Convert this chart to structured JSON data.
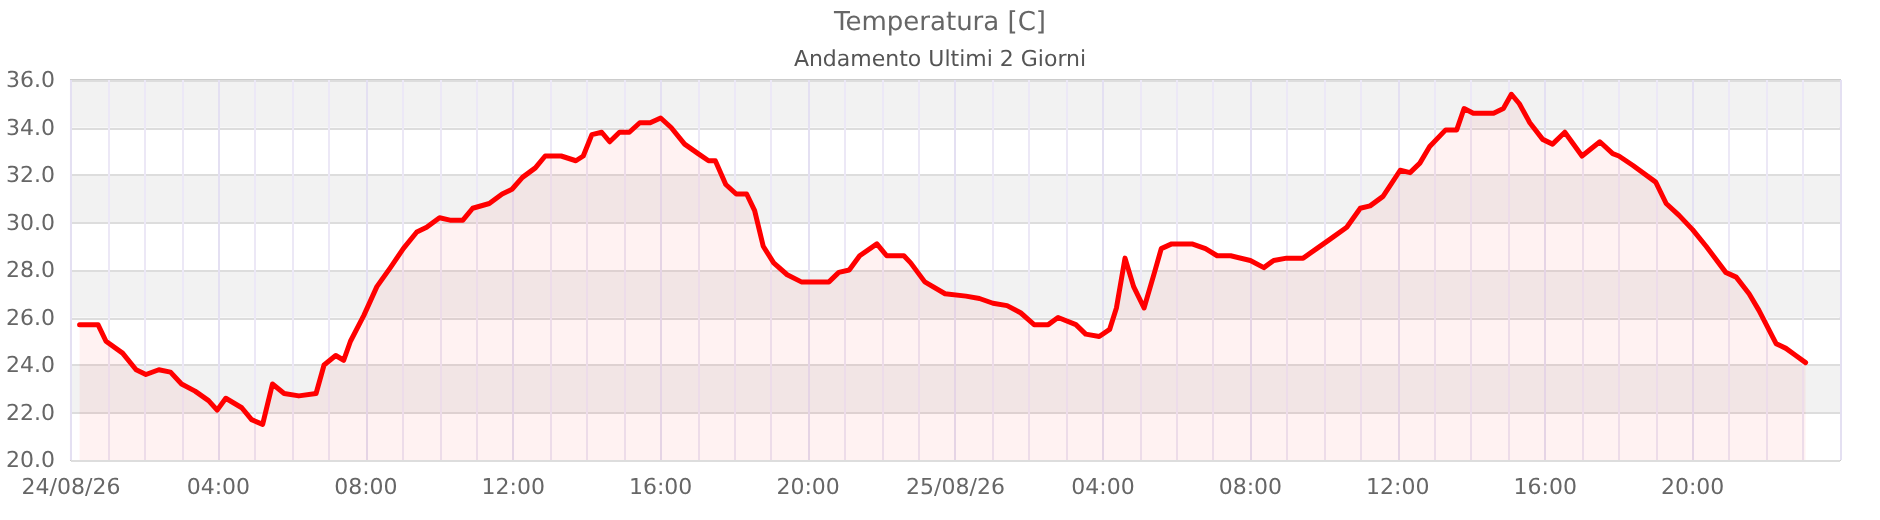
{
  "chart_data": {
    "type": "area",
    "title": "Temperatura [C]",
    "subtitle": "Andamento Ultimi 2 Giorni",
    "xlim": [
      "--08-24T00:00",
      "--08-26T00:00"
    ],
    "xticks": [
      {
        "value": "--08-24T00:00",
        "label": "24/08/26"
      },
      {
        "value": "--08-24T04:00",
        "label": "04:00"
      },
      {
        "value": "--08-24T08:00",
        "label": "08:00"
      },
      {
        "value": "--08-24T12:00",
        "label": "12:00"
      },
      {
        "value": "--08-24T16:00",
        "label": "16:00"
      },
      {
        "value": "--08-24T20:00",
        "label": "20:00"
      },
      {
        "value": "--08-25T00:00",
        "label": "25/08/26"
      },
      {
        "value": "--08-25T04:00",
        "label": "04:00"
      },
      {
        "value": "--08-25T08:00",
        "label": "08:00"
      },
      {
        "value": "--08-25T12:00",
        "label": "12:00"
      },
      {
        "value": "--08-25T16:00",
        "label": "16:00"
      },
      {
        "value": "--08-25T20:00",
        "label": "20:00"
      }
    ],
    "ylim": [
      20,
      36
    ],
    "yticks": [
      {
        "value": 20,
        "label": "20.0"
      },
      {
        "value": 22,
        "label": "22.0"
      },
      {
        "value": 24,
        "label": "24.0"
      },
      {
        "value": 26,
        "label": "26.0"
      },
      {
        "value": 28,
        "label": "28.0"
      },
      {
        "value": 30,
        "label": "30.0"
      },
      {
        "value": 32,
        "label": "32.0"
      },
      {
        "value": 34,
        "label": "34.0"
      },
      {
        "value": 36,
        "label": "36.0"
      }
    ],
    "grid": true,
    "marker": "none",
    "line_style": "solid",
    "series": [
      {
        "color": "#ff0000",
        "x": [
          "--08-24T00:14",
          "--08-24T00:44",
          "--08-24T00:57",
          "--08-24T01:24",
          "--08-24T01:46",
          "--08-24T02:02",
          "--08-24T02:23",
          "--08-24T02:42",
          "--08-24T03:00",
          "--08-24T03:22",
          "--08-24T03:44",
          "--08-24T03:58",
          "--08-24T04:12",
          "--08-24T04:38",
          "--08-24T04:54",
          "--08-24T05:12",
          "--08-24T05:28",
          "--08-24T05:47",
          "--08-24T06:11",
          "--08-24T06:39",
          "--08-24T06:52",
          "--08-24T07:11",
          "--08-24T07:24",
          "--08-24T07:35",
          "--08-24T07:57",
          "--08-24T08:18",
          "--08-24T08:40",
          "--08-24T09:01",
          "--08-24T09:23",
          "--08-24T09:39",
          "--08-24T10:00",
          "--08-24T10:17",
          "--08-24T10:38",
          "--08-24T10:54",
          "--08-24T11:21",
          "--08-24T11:42",
          "--08-24T11:58",
          "--08-24T12:15",
          "--08-24T12:36",
          "--08-24T12:52",
          "--08-24T13:18",
          "--08-24T13:42",
          "--08-24T13:54",
          "--08-24T14:08",
          "--08-24T14:24",
          "--08-24T14:37",
          "--08-24T14:53",
          "--08-24T15:09",
          "--08-24T15:26",
          "--08-24T15:43",
          "--08-24T16:00",
          "--08-24T16:17",
          "--08-24T16:39",
          "--08-24T17:01",
          "--08-24T17:18",
          "--08-24T17:29",
          "--08-24T17:46",
          "--08-24T18:03",
          "--08-24T18:20",
          "--08-24T18:33",
          "--08-24T18:47",
          "--08-24T19:04",
          "--08-24T19:26",
          "--08-24T19:49",
          "--08-24T20:34",
          "--08-24T20:50",
          "--08-24T21:07",
          "--08-24T21:24",
          "--08-24T21:52",
          "--08-24T22:08",
          "--08-24T22:36",
          "--08-24T22:47",
          "--08-24T23:10",
          "--08-24T23:43",
          "--08-25T00:17",
          "--08-25T00:39",
          "--08-25T01:01",
          "--08-25T01:24",
          "--08-25T01:46",
          "--08-25T02:08",
          "--08-25T02:31",
          "--08-25T02:47",
          "--08-25T03:16",
          "--08-25T03:32",
          "--08-25T03:54",
          "--08-25T04:11",
          "--08-25T04:22",
          "--08-25T04:36",
          "--08-25T04:50",
          "--08-25T05:07",
          "--08-25T05:24",
          "--08-25T05:35",
          "--08-25T05:52",
          "--08-25T06:25",
          "--08-25T06:47",
          "--08-25T07:06",
          "--08-25T07:28",
          "--08-25T08:00",
          "--08-25T08:22",
          "--08-25T08:38",
          "--08-25T08:59",
          "--08-25T09:26",
          "--08-25T09:48",
          "--08-25T10:10",
          "--08-25T10:37",
          "--08-25T10:59",
          "--08-25T11:15",
          "--08-25T11:36",
          "--08-25T12:04",
          "--08-25T12:20",
          "--08-25T12:36",
          "--08-25T12:52",
          "--08-25T13:18",
          "--08-25T13:36",
          "--08-25T13:48",
          "--08-25T14:03",
          "--08-25T14:36",
          "--08-25T14:52",
          "--08-25T15:05",
          "--08-25T15:18",
          "--08-25T15:35",
          "--08-25T15:56",
          "--08-25T16:12",
          "--08-25T16:32",
          "--08-25T17:00",
          "--08-25T17:29",
          "--08-25T17:50",
          "--08-25T18:00",
          "--08-25T18:23",
          "--08-25T19:00",
          "--08-25T19:17",
          "--08-25T19:38",
          "--08-25T20:00",
          "--08-25T20:22",
          "--08-25T20:54",
          "--08-25T21:11",
          "--08-25T21:32",
          "--08-25T21:48",
          "--08-25T22:16",
          "--08-25T22:32",
          "--08-25T22:48",
          "--08-25T23:04"
        ],
        "values": [
          25.7,
          25.7,
          25.0,
          24.5,
          23.8,
          23.6,
          23.8,
          23.7,
          23.2,
          22.9,
          22.5,
          22.1,
          22.6,
          22.2,
          21.7,
          21.5,
          23.2,
          22.8,
          22.7,
          22.8,
          24.0,
          24.4,
          24.2,
          25.0,
          26.1,
          27.3,
          28.1,
          28.9,
          29.6,
          29.8,
          30.2,
          30.1,
          30.1,
          30.6,
          30.8,
          31.2,
          31.4,
          31.9,
          32.3,
          32.8,
          32.8,
          32.6,
          32.8,
          33.7,
          33.8,
          33.4,
          33.8,
          33.8,
          34.2,
          34.2,
          34.4,
          34.0,
          33.3,
          32.9,
          32.6,
          32.6,
          31.6,
          31.2,
          31.2,
          30.5,
          29.0,
          28.3,
          27.8,
          27.5,
          27.5,
          27.9,
          28.0,
          28.6,
          29.1,
          28.6,
          28.6,
          28.3,
          27.5,
          27.0,
          26.9,
          26.8,
          26.6,
          26.5,
          26.2,
          25.7,
          25.7,
          26.0,
          25.7,
          25.3,
          25.2,
          25.5,
          26.4,
          28.5,
          27.3,
          26.4,
          27.9,
          28.9,
          29.1,
          29.1,
          28.9,
          28.6,
          28.6,
          28.4,
          28.1,
          28.4,
          28.5,
          28.5,
          28.9,
          29.3,
          29.8,
          30.6,
          30.7,
          31.1,
          32.2,
          32.1,
          32.5,
          33.2,
          33.9,
          33.9,
          34.8,
          34.6,
          34.6,
          34.8,
          35.4,
          35.0,
          34.2,
          33.5,
          33.3,
          33.8,
          32.8,
          33.4,
          32.9,
          32.8,
          32.4,
          31.7,
          30.8,
          30.3,
          29.7,
          29.0,
          27.9,
          27.7,
          27.0,
          26.3,
          24.9,
          24.7,
          24.4,
          24.1
        ]
      }
    ]
  }
}
